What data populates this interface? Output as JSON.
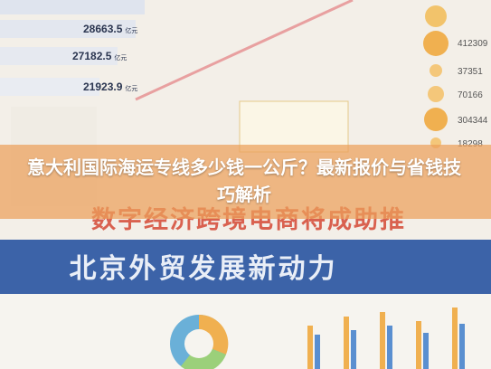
{
  "figures": [
    {
      "value": "28663.5",
      "unit": "亿元"
    },
    {
      "value": "27182.5",
      "unit": "亿元"
    },
    {
      "value": "21923.9",
      "unit": "亿元"
    }
  ],
  "right_values": [
    412309,
    37351,
    70166,
    304344,
    18298
  ],
  "banner_lines": [
    "数字经济跨境电商将成助推",
    "北京外贸发展新动力"
  ],
  "overlay_title": "意大利国际海运专线多少钱一公斤？最新报价与省钱技巧解析"
}
